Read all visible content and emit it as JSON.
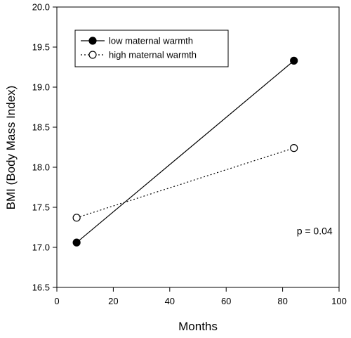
{
  "chart_data": {
    "type": "line",
    "title": "",
    "xlabel": "Months",
    "ylabel": "BMI (Body Mass Index)",
    "xlim": [
      0,
      100
    ],
    "ylim": [
      16.5,
      20.0
    ],
    "xticks": [
      "0",
      "20",
      "40",
      "60",
      "80",
      "100"
    ],
    "yticks": [
      "16.5",
      "17.0",
      "17.5",
      "18.0",
      "18.5",
      "19.0",
      "19.5",
      "20.0"
    ],
    "grid": false,
    "legend_position": "top-left",
    "series": [
      {
        "name": "low maternal warmth",
        "x": [
          7,
          84
        ],
        "y": [
          17.06,
          19.33
        ],
        "line_style": "solid",
        "marker": "filled-circle",
        "color": "#000000"
      },
      {
        "name": "high maternal warmth",
        "x": [
          7,
          84
        ],
        "y": [
          17.37,
          18.24
        ],
        "line_style": "dotted",
        "marker": "open-circle",
        "color": "#000000"
      }
    ],
    "annotations": [
      {
        "text": "p = 0.04",
        "x": 85,
        "y": 17.2
      }
    ]
  }
}
